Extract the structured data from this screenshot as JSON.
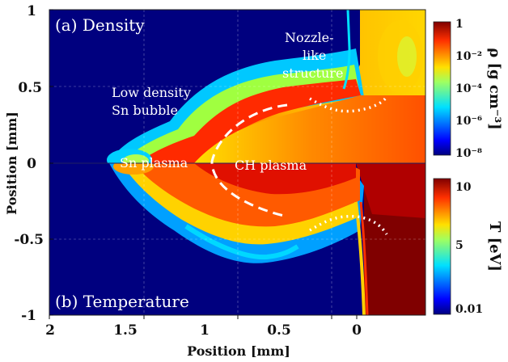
{
  "panels": {
    "top_label": "(a) Density",
    "bottom_label": "(b) Temperature"
  },
  "annotations": {
    "nozzle_line1": "Nozzle-",
    "nozzle_line2": "like",
    "nozzle_line3": "structure",
    "bubble_line1": "Low density",
    "bubble_line2": "Sn bubble",
    "sn_plasma": "Sn plasma",
    "ch_plasma": "CH plasma"
  },
  "axes": {
    "xlabel": "Position [mm]",
    "ylabel": "Position [mm]",
    "xticks": [
      "2",
      "1.5",
      "1",
      "0.5",
      "0"
    ],
    "yticks": [
      "1",
      "0.5",
      "0",
      "-0.5",
      "-1"
    ]
  },
  "colorbars": {
    "density": {
      "label": "ρ [g cm⁻³]",
      "ticks": [
        "1",
        "10⁻²",
        "10⁻⁴",
        "10⁻⁶",
        "10⁻⁸"
      ]
    },
    "temperature": {
      "label": "T [eV]",
      "ticks": [
        "10",
        "5",
        "0.01"
      ]
    }
  },
  "colors": {
    "jet_dark_blue": "#00007f",
    "jet_blue": "#0010ff",
    "jet_cyan": "#00d8ff",
    "jet_yellow": "#ffe000",
    "jet_orange": "#ff6a00",
    "jet_red": "#d40000",
    "jet_dark_red": "#7f0000"
  }
}
